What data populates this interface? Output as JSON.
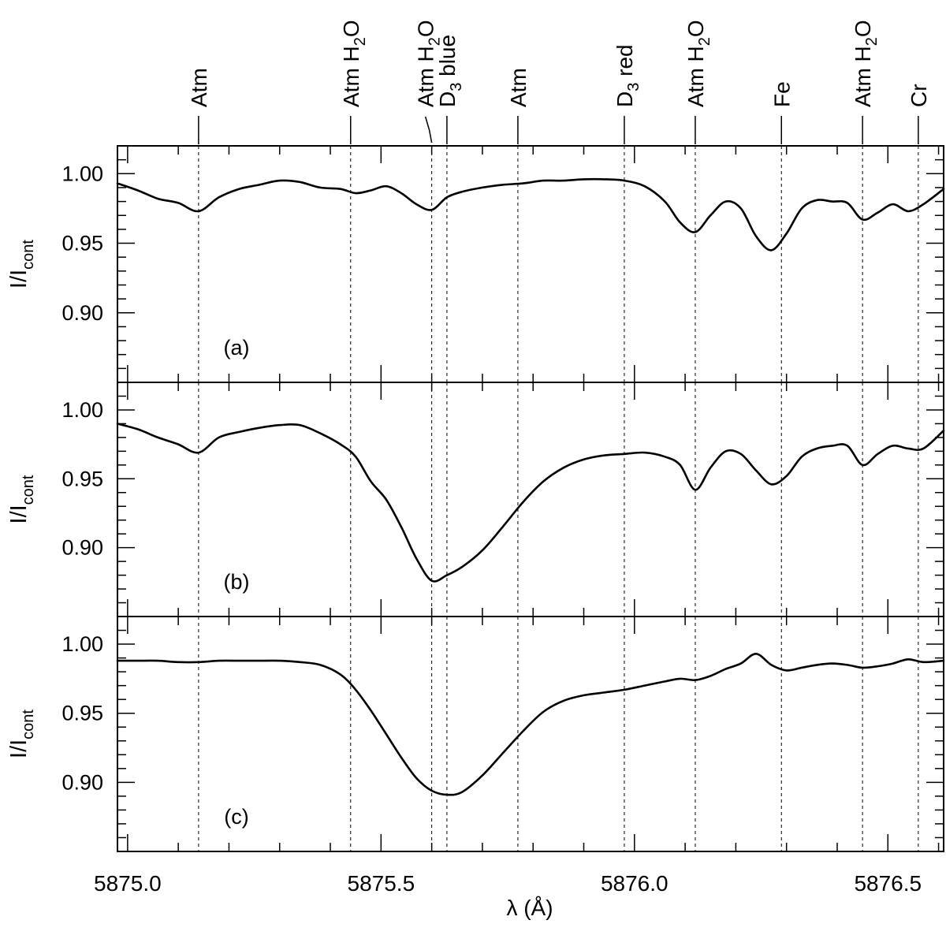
{
  "chart_data": {
    "type": "line",
    "xlabel": "λ (Å)",
    "ylabel_main": "I/I",
    "ylabel_sub": "cont",
    "xlim": [
      5874.98,
      5876.61
    ],
    "ylim": [
      0.85,
      1.02
    ],
    "x_ticks": [
      {
        "value": 5875.0,
        "label": "5875.0"
      },
      {
        "value": 5875.5,
        "label": "5875.5"
      },
      {
        "value": 5876.0,
        "label": "5876.0"
      },
      {
        "value": 5876.5,
        "label": "5876.5"
      }
    ],
    "y_ticks": [
      {
        "value": 0.9,
        "label": "0.90"
      },
      {
        "value": 0.95,
        "label": "0.95"
      },
      {
        "value": 1.0,
        "label": "1.00"
      }
    ],
    "line_markers": [
      {
        "x": 5875.14,
        "parts": [
          {
            "t": "Atm"
          }
        ]
      },
      {
        "x": 5875.44,
        "parts": [
          {
            "t": "Atm H"
          },
          {
            "t": "2",
            "sub": true
          },
          {
            "t": "O"
          }
        ]
      },
      {
        "x": 5875.6,
        "parts": [
          {
            "t": "Atm H"
          },
          {
            "t": "2",
            "sub": true
          },
          {
            "t": "O"
          }
        ],
        "leader": true
      },
      {
        "x": 5875.63,
        "parts": [
          {
            "t": "D"
          },
          {
            "t": "3",
            "sub": true
          },
          {
            "t": "  blue"
          }
        ]
      },
      {
        "x": 5875.77,
        "parts": [
          {
            "t": "Atm"
          }
        ]
      },
      {
        "x": 5875.98,
        "parts": [
          {
            "t": "D"
          },
          {
            "t": "3",
            "sub": true
          },
          {
            "t": "  red"
          }
        ]
      },
      {
        "x": 5876.12,
        "parts": [
          {
            "t": "Atm H"
          },
          {
            "t": "2",
            "sub": true
          },
          {
            "t": "O"
          }
        ]
      },
      {
        "x": 5876.29,
        "parts": [
          {
            "t": "Fe"
          }
        ]
      },
      {
        "x": 5876.45,
        "parts": [
          {
            "t": "Atm H"
          },
          {
            "t": "2",
            "sub": true
          },
          {
            "t": "O"
          }
        ]
      },
      {
        "x": 5876.56,
        "parts": [
          {
            "t": "Cr"
          }
        ]
      }
    ],
    "panels": [
      {
        "label": "(a)",
        "series": [
          {
            "x": [
              5874.98,
              5875.02,
              5875.06,
              5875.1,
              5875.14,
              5875.18,
              5875.22,
              5875.26,
              5875.3,
              5875.34,
              5875.38,
              5875.42,
              5875.45,
              5875.48,
              5875.51,
              5875.54,
              5875.57,
              5875.6,
              5875.63,
              5875.66,
              5875.7,
              5875.74,
              5875.78,
              5875.82,
              5875.86,
              5875.9,
              5875.94,
              5875.98,
              5876.02,
              5876.06,
              5876.09,
              5876.12,
              5876.15,
              5876.18,
              5876.21,
              5876.24,
              5876.27,
              5876.3,
              5876.33,
              5876.36,
              5876.39,
              5876.42,
              5876.45,
              5876.48,
              5876.51,
              5876.54,
              5876.57,
              5876.61
            ],
            "y": [
              0.993,
              0.988,
              0.982,
              0.979,
              0.973,
              0.983,
              0.989,
              0.992,
              0.995,
              0.994,
              0.99,
              0.989,
              0.986,
              0.988,
              0.991,
              0.986,
              0.978,
              0.974,
              0.983,
              0.987,
              0.99,
              0.992,
              0.993,
              0.995,
              0.995,
              0.996,
              0.996,
              0.995,
              0.991,
              0.98,
              0.965,
              0.958,
              0.97,
              0.98,
              0.975,
              0.955,
              0.945,
              0.957,
              0.975,
              0.981,
              0.98,
              0.979,
              0.967,
              0.972,
              0.978,
              0.973,
              0.978,
              0.989
            ]
          }
        ]
      },
      {
        "label": "(b)",
        "series": [
          {
            "x": [
              5874.98,
              5875.02,
              5875.06,
              5875.1,
              5875.14,
              5875.18,
              5875.22,
              5875.26,
              5875.3,
              5875.34,
              5875.38,
              5875.42,
              5875.45,
              5875.48,
              5875.51,
              5875.54,
              5875.57,
              5875.6,
              5875.63,
              5875.66,
              5875.7,
              5875.74,
              5875.78,
              5875.82,
              5875.86,
              5875.9,
              5875.94,
              5875.98,
              5876.02,
              5876.06,
              5876.09,
              5876.12,
              5876.15,
              5876.18,
              5876.21,
              5876.24,
              5876.27,
              5876.3,
              5876.33,
              5876.36,
              5876.39,
              5876.42,
              5876.45,
              5876.48,
              5876.51,
              5876.54,
              5876.57,
              5876.61
            ],
            "y": [
              0.99,
              0.986,
              0.98,
              0.975,
              0.969,
              0.98,
              0.984,
              0.987,
              0.989,
              0.989,
              0.983,
              0.975,
              0.966,
              0.948,
              0.935,
              0.915,
              0.892,
              0.876,
              0.88,
              0.886,
              0.898,
              0.915,
              0.933,
              0.948,
              0.958,
              0.964,
              0.967,
              0.968,
              0.969,
              0.966,
              0.96,
              0.942,
              0.958,
              0.97,
              0.968,
              0.956,
              0.946,
              0.952,
              0.966,
              0.972,
              0.974,
              0.974,
              0.96,
              0.968,
              0.974,
              0.972,
              0.972,
              0.985
            ]
          }
        ]
      },
      {
        "label": "(c)",
        "series": [
          {
            "x": [
              5874.98,
              5875.02,
              5875.06,
              5875.1,
              5875.14,
              5875.18,
              5875.22,
              5875.26,
              5875.3,
              5875.34,
              5875.38,
              5875.42,
              5875.45,
              5875.48,
              5875.51,
              5875.54,
              5875.57,
              5875.6,
              5875.63,
              5875.66,
              5875.7,
              5875.74,
              5875.78,
              5875.82,
              5875.86,
              5875.9,
              5875.94,
              5875.98,
              5876.02,
              5876.06,
              5876.09,
              5876.12,
              5876.15,
              5876.18,
              5876.21,
              5876.24,
              5876.27,
              5876.3,
              5876.33,
              5876.36,
              5876.39,
              5876.42,
              5876.45,
              5876.48,
              5876.51,
              5876.54,
              5876.57,
              5876.61
            ],
            "y": [
              0.988,
              0.988,
              0.988,
              0.987,
              0.987,
              0.988,
              0.988,
              0.988,
              0.988,
              0.987,
              0.985,
              0.978,
              0.967,
              0.952,
              0.935,
              0.918,
              0.903,
              0.894,
              0.891,
              0.893,
              0.905,
              0.921,
              0.937,
              0.951,
              0.959,
              0.963,
              0.965,
              0.967,
              0.97,
              0.973,
              0.975,
              0.974,
              0.977,
              0.982,
              0.986,
              0.993,
              0.985,
              0.981,
              0.983,
              0.985,
              0.986,
              0.985,
              0.983,
              0.984,
              0.986,
              0.989,
              0.987,
              0.988
            ]
          }
        ]
      }
    ]
  }
}
